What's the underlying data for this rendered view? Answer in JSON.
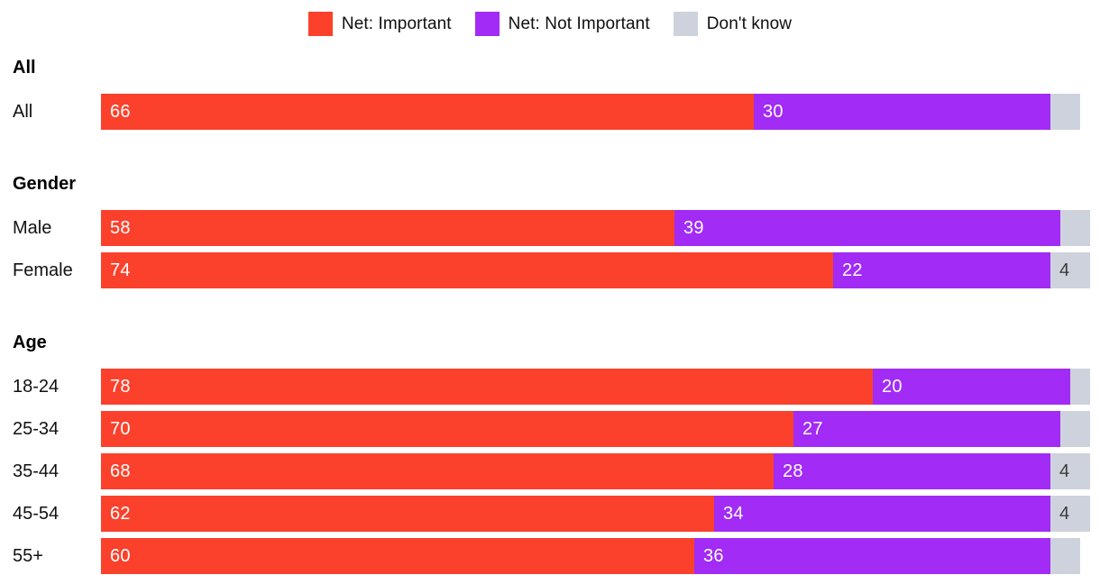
{
  "chart_data": {
    "type": "bar",
    "variant": "horizontal_stacked",
    "axis_max": 100,
    "grid": false,
    "legend_position": "top-center",
    "series": [
      {
        "name": "Net: Important",
        "color": "#FB412C",
        "label_color": "#FFFFFF"
      },
      {
        "name": "Net: Not Important",
        "color": "#A22BF5",
        "label_color": "#FFFFFF"
      },
      {
        "name": "Don't know",
        "color": "#CED2DC",
        "label_color": "#3B3B3B"
      }
    ],
    "groups": [
      {
        "header": "All",
        "rows": [
          {
            "label": "All",
            "values": [
              66,
              30,
              3
            ],
            "value_labels": [
              "66",
              "30",
              ""
            ]
          }
        ]
      },
      {
        "header": "Gender",
        "rows": [
          {
            "label": "Male",
            "values": [
              58,
              39,
              3
            ],
            "value_labels": [
              "58",
              "39",
              ""
            ]
          },
          {
            "label": "Female",
            "values": [
              74,
              22,
              4
            ],
            "value_labels": [
              "74",
              "22",
              "4"
            ]
          }
        ]
      },
      {
        "header": "Age",
        "rows": [
          {
            "label": "18-24",
            "values": [
              78,
              20,
              2
            ],
            "value_labels": [
              "78",
              "20",
              ""
            ]
          },
          {
            "label": "25-34",
            "values": [
              70,
              27,
              3
            ],
            "value_labels": [
              "70",
              "27",
              ""
            ]
          },
          {
            "label": "35-44",
            "values": [
              68,
              28,
              4
            ],
            "value_labels": [
              "68",
              "28",
              "4"
            ]
          },
          {
            "label": "45-54",
            "values": [
              62,
              34,
              4
            ],
            "value_labels": [
              "62",
              "34",
              "4"
            ]
          },
          {
            "label": "55+",
            "values": [
              60,
              36,
              3
            ],
            "value_labels": [
              "60",
              "36",
              ""
            ]
          }
        ]
      }
    ]
  }
}
